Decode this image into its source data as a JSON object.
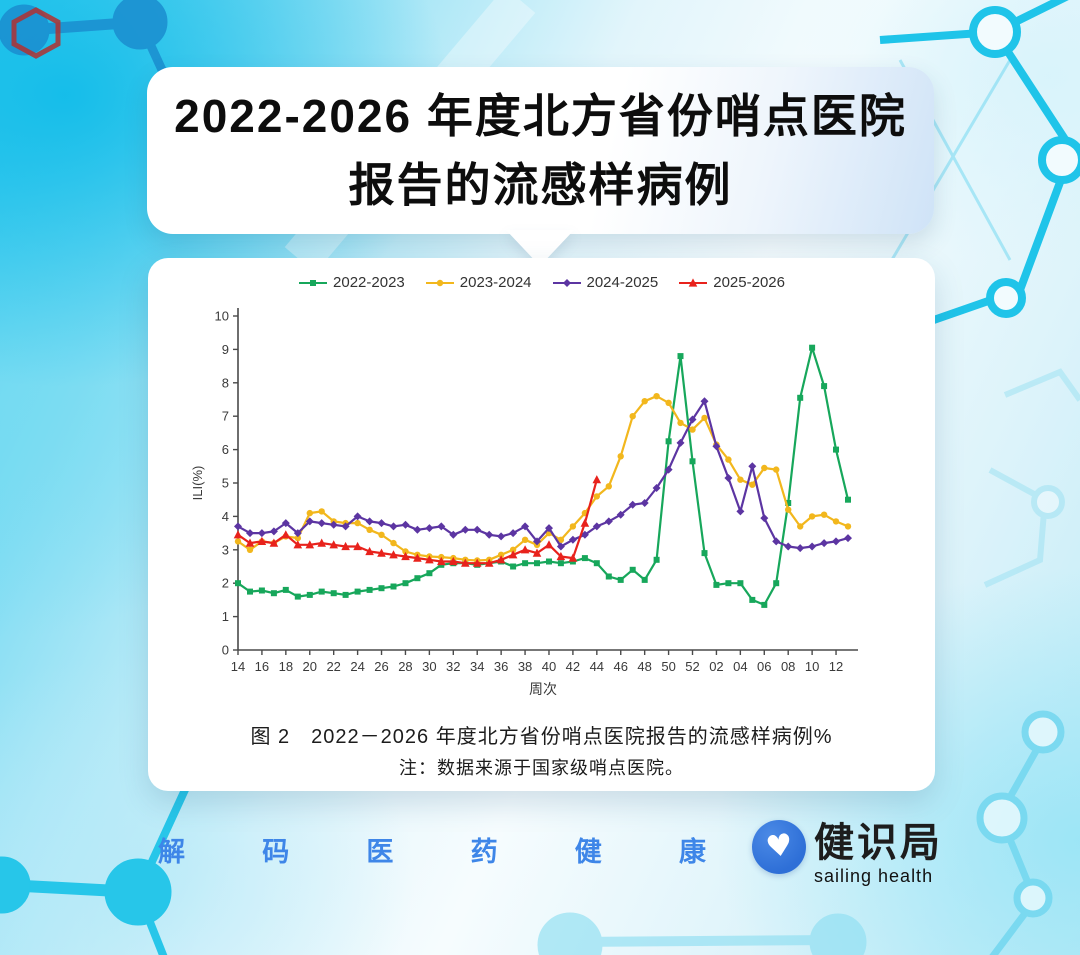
{
  "title": {
    "line1": "2022-2026 年度北方省份哨点医院",
    "line2": "报告的流感样病例"
  },
  "figure": {
    "caption": "图 2　2022－2026 年度北方省份哨点医院报告的流感样病例%",
    "note": "注：数据来源于国家级哨点医院。"
  },
  "footer": {
    "slogan_chars": [
      "解",
      "码",
      "医",
      "药",
      "健",
      "康"
    ],
    "brand_name": "健识局",
    "brand_sub": "sailing health",
    "heart_glyph": "♥"
  },
  "colors": {
    "background_cyan": "#25c4ea",
    "footer_blue": "#3e86e8",
    "logo_blue": "#2e6fd7",
    "series_green": "#17a75b",
    "series_yellow": "#f2b71d",
    "series_purple": "#5c35a2",
    "series_red": "#e8221c"
  },
  "chart_data": {
    "type": "line",
    "title": "",
    "xlabel": "周次",
    "ylabel": "ILI(%)",
    "ylim": [
      0,
      10
    ],
    "y_ticks": [
      0,
      1,
      2,
      3,
      4,
      5,
      6,
      7,
      8,
      9,
      10
    ],
    "x_tick_every": 2,
    "grid": false,
    "legend_position": "top",
    "categories": [
      "14",
      "15",
      "16",
      "17",
      "18",
      "19",
      "20",
      "21",
      "22",
      "23",
      "24",
      "25",
      "26",
      "27",
      "28",
      "29",
      "30",
      "31",
      "32",
      "33",
      "34",
      "35",
      "36",
      "37",
      "38",
      "39",
      "40",
      "41",
      "42",
      "43",
      "44",
      "45",
      "46",
      "47",
      "48",
      "49",
      "50",
      "51",
      "52",
      "01",
      "02",
      "03",
      "04",
      "05",
      "06",
      "07",
      "08",
      "09",
      "10",
      "11",
      "12",
      "13"
    ],
    "series": [
      {
        "name": "2022-2023",
        "color": "#17a75b",
        "marker": "square",
        "values": [
          2.0,
          1.75,
          1.78,
          1.7,
          1.8,
          1.6,
          1.65,
          1.75,
          1.7,
          1.65,
          1.75,
          1.8,
          1.85,
          1.9,
          2.0,
          2.15,
          2.3,
          2.55,
          2.6,
          2.6,
          2.55,
          2.6,
          2.65,
          2.5,
          2.6,
          2.6,
          2.65,
          2.6,
          2.65,
          2.75,
          2.6,
          2.2,
          2.1,
          2.4,
          2.1,
          2.7,
          6.25,
          8.8,
          5.65,
          2.9,
          1.95,
          2.0,
          2.0,
          1.5,
          1.35,
          2.0,
          4.4,
          7.55,
          9.05,
          7.9,
          6.0,
          4.5
        ]
      },
      {
        "name": "2023-2024",
        "color": "#f2b71d",
        "marker": "circle",
        "values": [
          3.25,
          3.0,
          3.25,
          3.2,
          3.4,
          3.35,
          4.1,
          4.15,
          3.85,
          3.8,
          3.8,
          3.6,
          3.45,
          3.2,
          2.95,
          2.85,
          2.8,
          2.78,
          2.75,
          2.7,
          2.68,
          2.7,
          2.85,
          3.0,
          3.3,
          3.15,
          3.5,
          3.3,
          3.7,
          4.1,
          4.6,
          4.9,
          5.8,
          7.0,
          7.45,
          7.6,
          7.4,
          6.8,
          6.6,
          6.95,
          6.15,
          5.7,
          5.1,
          4.95,
          5.45,
          5.4,
          4.2,
          3.7,
          4.0,
          4.05,
          3.85,
          3.7
        ]
      },
      {
        "name": "2024-2025",
        "color": "#5c35a2",
        "marker": "diamond",
        "values": [
          3.7,
          3.5,
          3.5,
          3.55,
          3.8,
          3.5,
          3.85,
          3.8,
          3.75,
          3.7,
          4.0,
          3.85,
          3.8,
          3.7,
          3.75,
          3.6,
          3.65,
          3.7,
          3.45,
          3.6,
          3.6,
          3.45,
          3.4,
          3.5,
          3.7,
          3.25,
          3.65,
          3.1,
          3.3,
          3.45,
          3.7,
          3.85,
          4.05,
          4.35,
          4.4,
          4.85,
          5.4,
          6.2,
          6.9,
          7.45,
          6.1,
          5.15,
          4.15,
          5.5,
          3.95,
          3.25,
          3.1,
          3.05,
          3.1,
          3.2,
          3.25,
          3.35
        ]
      },
      {
        "name": "2025-2026",
        "color": "#e8221c",
        "marker": "triangle",
        "values": [
          3.45,
          3.2,
          3.25,
          3.2,
          3.45,
          3.15,
          3.15,
          3.2,
          3.15,
          3.1,
          3.1,
          2.95,
          2.9,
          2.85,
          2.8,
          2.75,
          2.7,
          2.65,
          2.65,
          2.6,
          2.6,
          2.6,
          2.7,
          2.85,
          3.0,
          2.9,
          3.15,
          2.8,
          2.75,
          3.8,
          5.1,
          null,
          null,
          null,
          null,
          null,
          null,
          null,
          null,
          null,
          null,
          null,
          null,
          null,
          null,
          null,
          null,
          null,
          null,
          null,
          null,
          null
        ]
      }
    ]
  }
}
